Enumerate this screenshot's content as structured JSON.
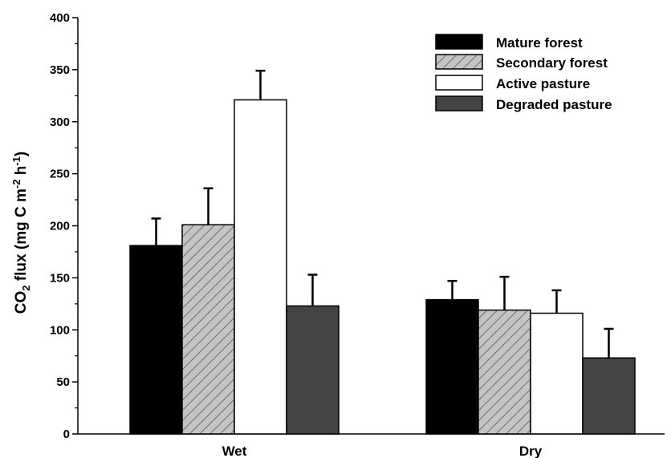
{
  "chart_data": {
    "type": "bar",
    "title": "",
    "xlabel": "",
    "ylabel": {
      "main": "CO",
      "sub": "2",
      "rest": " flux (mg C m",
      "sup1": "-2",
      "mid": " h",
      "sup2": "-1",
      "end": ")"
    },
    "ylim": [
      0,
      400
    ],
    "yticks": [
      "0",
      "50",
      "100",
      "150",
      "200",
      "250",
      "300",
      "350",
      "400"
    ],
    "categories": [
      "Wet",
      "Dry"
    ],
    "series": [
      {
        "name": "Mature forest",
        "values": [
          181,
          129
        ],
        "errors": [
          26,
          18
        ],
        "fill": "#000000",
        "pattern": "solid"
      },
      {
        "name": "Secondary forest",
        "values": [
          201,
          119
        ],
        "errors": [
          35,
          32
        ],
        "fill": "#c4c4c4",
        "pattern": "hatch"
      },
      {
        "name": "Active pasture",
        "values": [
          321,
          116
        ],
        "errors": [
          28,
          22
        ],
        "fill": "#ffffff",
        "pattern": "solid"
      },
      {
        "name": "Degraded pasture",
        "values": [
          123,
          73
        ],
        "errors": [
          30,
          28
        ],
        "fill": "#444444",
        "pattern": "solid"
      }
    ],
    "legend_position": "top-right",
    "grid": false
  }
}
